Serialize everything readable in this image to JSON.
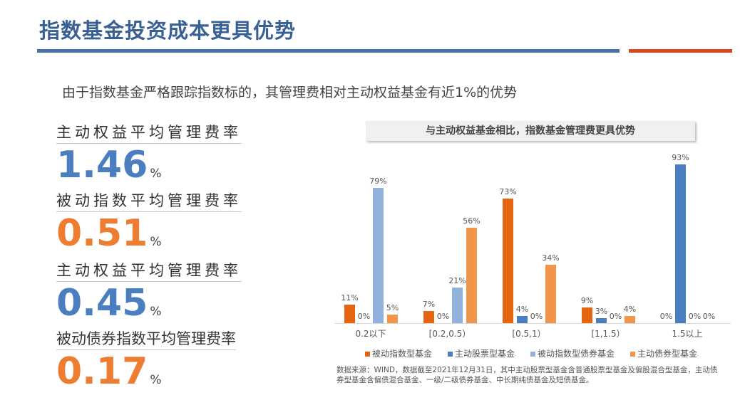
{
  "header": {
    "title": "指数基金投资成本更具优势",
    "accent_colors": {
      "blue_rule": "#4a72a6",
      "red_rule": "#d9481c"
    }
  },
  "subtitle": "由于指数基金严格跟踪指数标的，其管理费相对主动权益基金有近1%的优势",
  "stats": [
    {
      "label": "主动权益平均管理费率",
      "value": "1.46",
      "unit": "%",
      "color": "#4a7ec0"
    },
    {
      "label": "被动指数平均管理费率",
      "value": "0.51",
      "unit": "%",
      "color": "#ee7d31"
    },
    {
      "label": "主动权益平均管理费率",
      "value": "0.45",
      "unit": "%",
      "color": "#4a7ec0"
    },
    {
      "label": "被动债券指数平均管理费率",
      "value": "0.17",
      "unit": "%",
      "color": "#ee7d31"
    }
  ],
  "chart_data": {
    "type": "bar",
    "title": "与主动权益基金相比，指数基金管理费更具优势",
    "xlabel": "",
    "ylabel": "",
    "ylim": [
      0,
      100
    ],
    "grid": false,
    "legend_position": "bottom",
    "categories": [
      "0.2以下",
      "[0.2,0.5）",
      "[0.5,1）",
      "[1,1.5）",
      "1.5以上"
    ],
    "series": [
      {
        "name": "被动指数型基金",
        "color": "#e46412",
        "values": [
          11,
          7,
          73,
          9,
          0
        ]
      },
      {
        "name": "主动股票型基金",
        "color": "#4a7ec0",
        "values": [
          0,
          0,
          4,
          3,
          93
        ]
      },
      {
        "name": "被动指数型债券基金",
        "color": "#92b2dc",
        "values": [
          79,
          21,
          0,
          0,
          0
        ]
      },
      {
        "name": "主动债券型基金",
        "color": "#f0954a",
        "values": [
          5,
          56,
          34,
          4,
          0
        ]
      }
    ],
    "value_labels": "percent",
    "note": "数据来源：WIND，数据截至2021年12月31日，其中主动股票型基金含普通股票型基金及偏股混合型基金，主动债券型基金含偏债混合基金、一级/二级债券基金、中长期纯债基金及短债基金。"
  }
}
